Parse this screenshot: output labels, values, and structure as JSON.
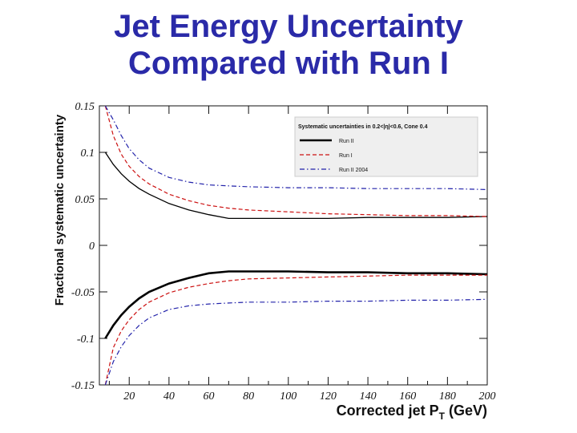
{
  "slide": {
    "title_line1": "Jet Energy Uncertainty",
    "title_line2": "Compared with Run I"
  },
  "colors": {
    "title": "#2a2aa8",
    "run2": "#000000",
    "run1": "#cc1111",
    "run2_2004": "#2222aa",
    "legend_bg": "#efefef"
  },
  "chart_data": {
    "type": "line",
    "title": "",
    "xlabel": "Corrected jet P",
    "xlabel_sub": "T",
    "xlabel_unit": "(GeV)",
    "ylabel": "Fractional systematic uncertainty",
    "xlim": [
      5,
      200
    ],
    "ylim": [
      -0.15,
      0.15
    ],
    "x_ticks": [
      20,
      40,
      60,
      80,
      100,
      120,
      140,
      160,
      180,
      200
    ],
    "x_tick_labels": [
      "20",
      "40",
      "60",
      "80",
      "100",
      "120",
      "140",
      "160",
      "180",
      "200"
    ],
    "y_ticks": [
      0.15,
      0.1,
      0.05,
      0,
      -0.05,
      -0.1,
      -0.15
    ],
    "y_tick_labels": [
      "0.15",
      "0.1",
      "0.05",
      "0",
      "-0.05",
      "-0.1",
      "-0.15"
    ],
    "legend": {
      "title": "Systematic uncertainties in 0.2<|η|<0.6, Cone 0.4",
      "placement": "top-right"
    },
    "x": [
      8,
      12,
      16,
      20,
      25,
      30,
      40,
      50,
      60,
      70,
      80,
      100,
      120,
      140,
      160,
      180,
      200
    ],
    "series": [
      {
        "name": "Run II",
        "style": "solid",
        "color_key": "run2",
        "upper": [
          0.1,
          0.087,
          0.077,
          0.069,
          0.061,
          0.055,
          0.045,
          0.038,
          0.033,
          0.029,
          0.029,
          0.029,
          0.029,
          0.03,
          0.03,
          0.03,
          0.031
        ],
        "lower": [
          -0.1,
          -0.086,
          -0.075,
          -0.066,
          -0.057,
          -0.05,
          -0.041,
          -0.035,
          -0.03,
          -0.028,
          -0.028,
          -0.028,
          -0.029,
          -0.029,
          -0.03,
          -0.03,
          -0.031
        ]
      },
      {
        "name": "Run I",
        "style": "dashed",
        "color_key": "run1",
        "upper": [
          0.15,
          0.118,
          0.098,
          0.085,
          0.074,
          0.066,
          0.055,
          0.048,
          0.043,
          0.04,
          0.038,
          0.036,
          0.034,
          0.033,
          0.032,
          0.032,
          0.031
        ],
        "lower": [
          -0.15,
          -0.11,
          -0.092,
          -0.08,
          -0.069,
          -0.061,
          -0.051,
          -0.045,
          -0.041,
          -0.038,
          -0.036,
          -0.035,
          -0.034,
          -0.033,
          -0.032,
          -0.032,
          -0.032
        ]
      },
      {
        "name": "Run II 2004",
        "style": "dashdot",
        "color_key": "run2_2004",
        "upper": [
          0.15,
          0.135,
          0.118,
          0.104,
          0.092,
          0.083,
          0.073,
          0.068,
          0.065,
          0.064,
          0.063,
          0.062,
          0.062,
          0.061,
          0.061,
          0.061,
          0.06
        ],
        "lower": [
          -0.15,
          -0.125,
          -0.109,
          -0.097,
          -0.086,
          -0.078,
          -0.069,
          -0.065,
          -0.063,
          -0.062,
          -0.061,
          -0.061,
          -0.06,
          -0.06,
          -0.059,
          -0.059,
          -0.058
        ]
      }
    ]
  }
}
